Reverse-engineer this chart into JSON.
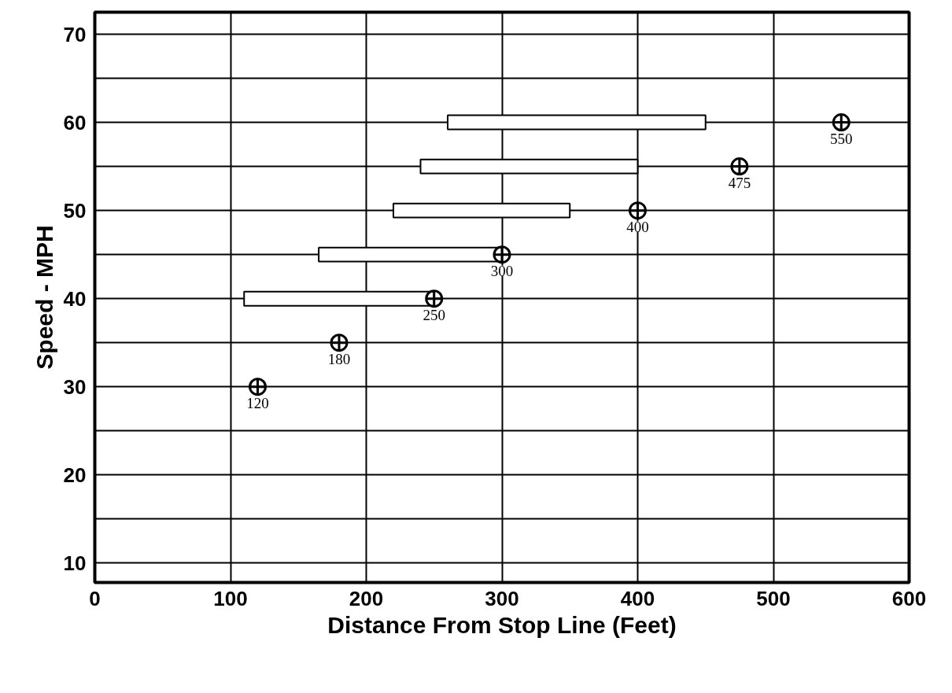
{
  "chart_data": {
    "type": "bar",
    "orientation": "horizontal",
    "xlabel": "Distance From Stop Line (Feet)",
    "ylabel": "Speed - MPH",
    "xlim": [
      0,
      600
    ],
    "xticks": [
      0,
      100,
      200,
      300,
      400,
      500,
      600
    ],
    "ylim": [
      7.8,
      72.5
    ],
    "yticks": [
      10,
      {
        "value": 15,
        "label": null
      },
      20,
      {
        "value": 25,
        "label": null
      },
      30,
      {
        "value": 35,
        "label": null
      },
      40,
      {
        "value": 45,
        "label": null
      },
      50,
      {
        "value": 55,
        "label": null
      },
      60,
      {
        "value": 65,
        "label": null
      },
      70
    ],
    "grid": true,
    "marker": "circle",
    "series": [
      {
        "color": "#ffffff",
        "x": [
          40,
          45,
          50,
          55,
          60
        ],
        "base": [
          110,
          165,
          220,
          240,
          260
        ],
        "values": [
          140,
          135,
          130,
          160,
          190
        ]
      },
      {
        "type": "scatter",
        "color": "#000000",
        "x": [
          30,
          35,
          40,
          45,
          50,
          55,
          60
        ],
        "values": [
          120,
          180,
          250,
          300,
          400,
          475,
          550
        ],
        "value_labels": [
          "120",
          "180",
          "250",
          "300",
          "400",
          "475",
          "550"
        ]
      }
    ]
  }
}
